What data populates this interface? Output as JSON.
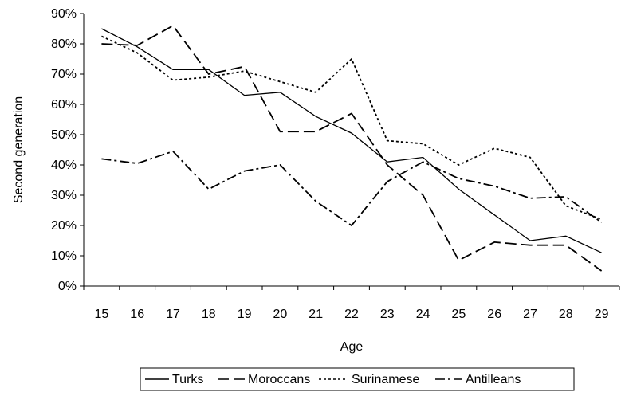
{
  "chart_data": {
    "type": "line",
    "x_label": "Age",
    "y_label": "Second generation",
    "categories": [
      "15",
      "16",
      "17",
      "18",
      "19",
      "20",
      "21",
      "22",
      "23",
      "24",
      "25",
      "26",
      "27",
      "28",
      "29"
    ],
    "ylim": [
      0,
      90
    ],
    "yticks": [
      {
        "value": 0,
        "label": "0%"
      },
      {
        "value": 10,
        "label": "10%"
      },
      {
        "value": 20,
        "label": "20%"
      },
      {
        "value": 30,
        "label": "30%"
      },
      {
        "value": 40,
        "label": "40%"
      },
      {
        "value": 50,
        "label": "50%"
      },
      {
        "value": 60,
        "label": "60%"
      },
      {
        "value": 70,
        "label": "70%"
      },
      {
        "value": 80,
        "label": "80%"
      },
      {
        "value": 90,
        "label": "90%"
      }
    ],
    "grid": false,
    "legend": "bottom",
    "series": [
      {
        "name": "Turks",
        "color": "#000000",
        "dash": "none",
        "values": [
          85,
          79,
          71.5,
          71.5,
          63,
          64,
          56,
          50.5,
          41,
          42.5,
          32,
          23.5,
          15,
          16.5,
          11
        ]
      },
      {
        "name": "Moroccans",
        "color": "#000000",
        "dash": "14 6",
        "values": [
          80,
          79.5,
          86,
          70,
          72.5,
          51,
          51,
          57,
          40,
          30,
          8.5,
          14.5,
          13.5,
          13.5,
          5
        ]
      },
      {
        "name": "Surinamese",
        "color": "#000000",
        "dash": "3 3",
        "values": [
          82.5,
          77,
          68,
          69,
          71,
          67.5,
          64,
          75,
          48,
          47,
          40,
          45.5,
          42.5,
          26.5,
          22
        ]
      },
      {
        "name": "Antilleans",
        "color": "#000000",
        "dash": "12 4 3 4",
        "values": [
          42,
          40.5,
          44.5,
          32,
          38,
          40,
          28,
          20,
          34.5,
          41,
          35.5,
          33,
          29,
          29.5,
          21
        ]
      }
    ]
  }
}
